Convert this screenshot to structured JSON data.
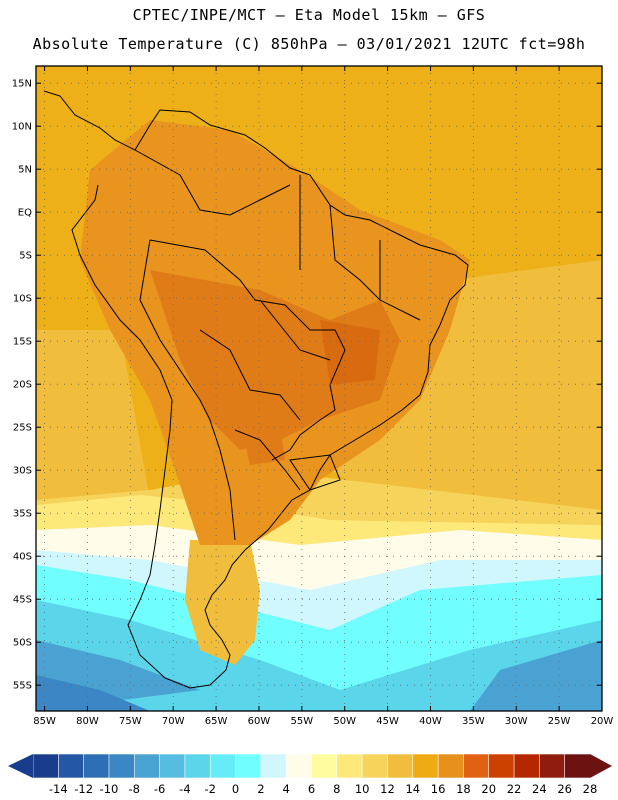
{
  "header": {
    "line1": "CPTEC/INPE/MCT –  Eta Model 15km – GFS",
    "line2": "Absolute Temperature (C) 850hPa – 03/01/2021 12UTC fct=98h"
  },
  "map": {
    "region": "South America",
    "lat_range": [
      -58,
      17
    ],
    "lon_range": [
      -86,
      -20
    ],
    "lat_labels": [
      "15N",
      "10N",
      "5N",
      "EQ",
      "5S",
      "10S",
      "15S",
      "20S",
      "25S",
      "30S",
      "35S",
      "40S",
      "45S",
      "50S",
      "55S"
    ],
    "lat_values": [
      15,
      10,
      5,
      0,
      -5,
      -10,
      -15,
      -20,
      -25,
      -30,
      -35,
      -40,
      -45,
      -50,
      -55
    ],
    "lon_labels": [
      "85W",
      "80W",
      "75W",
      "70W",
      "65W",
      "60W",
      "55W",
      "50W",
      "45W",
      "40W",
      "35W",
      "30W",
      "25W",
      "20W"
    ],
    "lon_values": [
      -85,
      -80,
      -75,
      -70,
      -65,
      -60,
      -55,
      -50,
      -45,
      -40,
      -35,
      -30,
      -25,
      -20
    ]
  },
  "colorbar": {
    "labels": [
      "-14",
      "-12",
      "-10",
      "-8",
      "-6",
      "-4",
      "-2",
      "0",
      "2",
      "4",
      "6",
      "8",
      "10",
      "12",
      "14",
      "16",
      "18",
      "20",
      "22",
      "24",
      "26",
      "28"
    ],
    "colors": [
      "#1a3c8c",
      "#2457a4",
      "#2d6fb4",
      "#3b86c4",
      "#4aa2d2",
      "#56bde0",
      "#5ad5ea",
      "#66ecf6",
      "#70fefe",
      "#d0f6fe",
      "#fffcea",
      "#fffca0",
      "#fde87a",
      "#f6d35a",
      "#f0be3c",
      "#f0aa14",
      "#e8901c",
      "#e06014",
      "#cc4000",
      "#b42800",
      "#901c10",
      "#6c1210"
    ]
  },
  "fields": {
    "ocean_north": "#eeb018",
    "land_warm": "#e8941e",
    "land_hot": "#e07c18",
    "hotspot": "#d86a10",
    "subtropical": "#f0be3c",
    "mid_lat": "#f6d35a",
    "pale_band": "#fde87a",
    "cream": "#fffcea",
    "light_cyan": "#d0f6fe",
    "cyan": "#70fefe",
    "cold": "#5ad5ea",
    "colder": "#4aa2d2",
    "coldest": "#3b86c4"
  }
}
